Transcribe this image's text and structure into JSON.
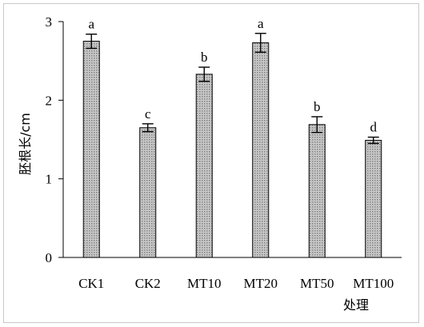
{
  "chart_data": {
    "type": "bar",
    "title": "",
    "xlabel": "处理",
    "ylabel": "胚根长/cm",
    "ylim": [
      0,
      3
    ],
    "yticks": [
      "0",
      "1",
      "2",
      "3"
    ],
    "categories": [
      "CK1",
      "CK2",
      "MT10",
      "MT20",
      "MT50",
      "MT100"
    ],
    "values": [
      2.75,
      1.65,
      2.33,
      2.73,
      1.69,
      1.49
    ],
    "errors": [
      0.09,
      0.05,
      0.09,
      0.12,
      0.1,
      0.04
    ],
    "significance": [
      "a",
      "c",
      "b",
      "a",
      "b",
      "d"
    ],
    "grid": false,
    "legend": "none",
    "bar_fill": "dotted-gray",
    "bar_color": "#b9b9b9",
    "axis_color": "#000000",
    "frame_color": "#c9c9c9"
  }
}
